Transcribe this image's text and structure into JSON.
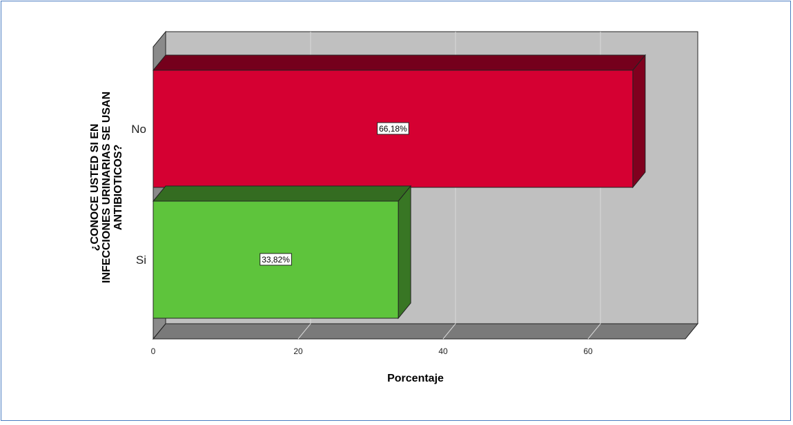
{
  "chart_data": {
    "type": "bar",
    "orientation": "horizontal",
    "three_d": true,
    "categories": [
      "No",
      "Si"
    ],
    "values": [
      66.18,
      33.82
    ],
    "data_labels": [
      "66,18%",
      "33,82%"
    ],
    "colors": [
      "#d50032",
      "#5ec43c"
    ],
    "xlabel": "Porcentaje",
    "ylabel": "¿CONOCE USTED SI EN INFECCIONES URINARIAS SE USAN ANTIBIOTICOS?",
    "ylabel_lines": [
      "¿CONOCE USTED SI EN",
      "INFECCIONES URINARIAS SE USAN",
      "ANTIBIOTICOS?"
    ],
    "xticks": [
      "0",
      "20",
      "40",
      "60"
    ],
    "xlim": [
      0,
      74
    ],
    "grid": "vertical",
    "background": "#c0c0c0"
  }
}
